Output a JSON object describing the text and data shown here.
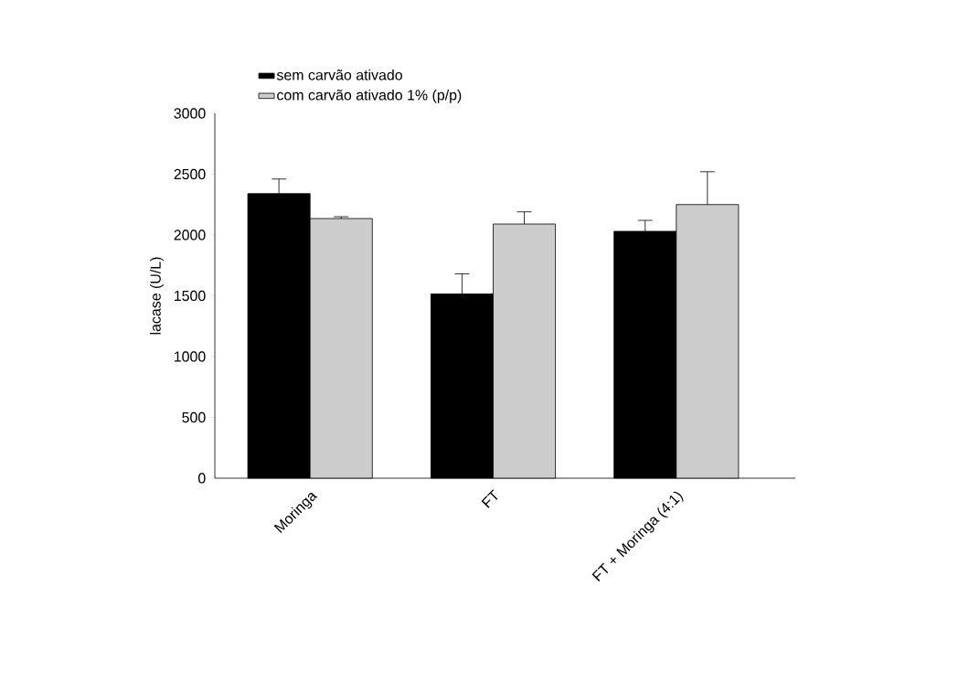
{
  "chart_data": {
    "type": "bar",
    "ylabel": "lacase (U/L)",
    "categories": [
      "Moringa",
      "FT",
      "FT + Moringa (4:1)"
    ],
    "series": [
      {
        "name": "sem carvão ativado",
        "color": "#000000",
        "values": [
          2340,
          1515,
          2030
        ],
        "errors": [
          120,
          165,
          90
        ]
      },
      {
        "name": "com carvão ativado 1% (p/p)",
        "color": "#cccccc",
        "values": [
          2135,
          2090,
          2250
        ],
        "errors": [
          15,
          100,
          270
        ]
      }
    ],
    "ylim": [
      0,
      3000
    ],
    "yticks": [
      0,
      500,
      1000,
      1500,
      2000,
      2500,
      3000
    ],
    "grid": false,
    "legend": "top"
  }
}
